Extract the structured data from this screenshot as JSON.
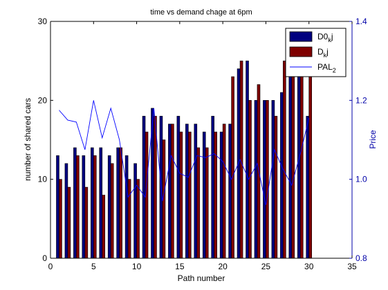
{
  "chart_data": {
    "type": "bar",
    "title": "time vs demand chage at 6pm",
    "xlabel": "Path number",
    "ylabel": "number of shared cars",
    "y2label": "Price",
    "xlim": [
      0,
      35
    ],
    "ylim": [
      0,
      30
    ],
    "y2lim": [
      0.8,
      1.4
    ],
    "xticks": [
      0,
      5,
      10,
      15,
      20,
      25,
      30,
      35
    ],
    "yticks": [
      0,
      10,
      20,
      30
    ],
    "y2ticks": [
      0.8,
      1,
      1.2,
      1.4
    ],
    "x": [
      1,
      2,
      3,
      4,
      5,
      6,
      7,
      8,
      9,
      10,
      11,
      12,
      13,
      14,
      15,
      16,
      17,
      18,
      19,
      20,
      21,
      22,
      23,
      24,
      25,
      26,
      27,
      28,
      29,
      30
    ],
    "legend_position": "top-right",
    "series": [
      {
        "name": "D0kj",
        "legend_main": "D0",
        "legend_sub": "k",
        "legend_tail": "j",
        "color": "#00007f",
        "axis": "left",
        "kind": "bar",
        "values": [
          13,
          12,
          14,
          13,
          14,
          14,
          13,
          14,
          13,
          12,
          18,
          19,
          18,
          17,
          18,
          17,
          17,
          16,
          18,
          16,
          17,
          24,
          25,
          20,
          20,
          20,
          21,
          25,
          25,
          18
        ]
      },
      {
        "name": "Dkj",
        "legend_main": "D",
        "legend_sub": "k",
        "legend_tail": "j",
        "color": "#7f0000",
        "axis": "left",
        "kind": "bar",
        "values": [
          10,
          9,
          13,
          9,
          13,
          8,
          12,
          14,
          10,
          10,
          16,
          18,
          15,
          17,
          16,
          16,
          14,
          14,
          16,
          17,
          23,
          25,
          20,
          22,
          20,
          18,
          25,
          23,
          23,
          23
        ]
      },
      {
        "name": "PAL2",
        "legend_main": "PAL",
        "legend_sub": "2",
        "legend_tail": "",
        "color": "#0000ff",
        "axis": "right",
        "kind": "line",
        "values": [
          1.175,
          1.15,
          1.145,
          1.075,
          1.2,
          1.105,
          1.18,
          1.1,
          0.955,
          0.985,
          0.955,
          1.18,
          0.945,
          1.06,
          1.015,
          1.005,
          1.06,
          1.055,
          1.065,
          1.045,
          1.0,
          1.05,
          1.0,
          1.04,
          0.935,
          1.075,
          1.025,
          0.985,
          1.065,
          1.155
        ]
      }
    ],
    "grid": false
  }
}
